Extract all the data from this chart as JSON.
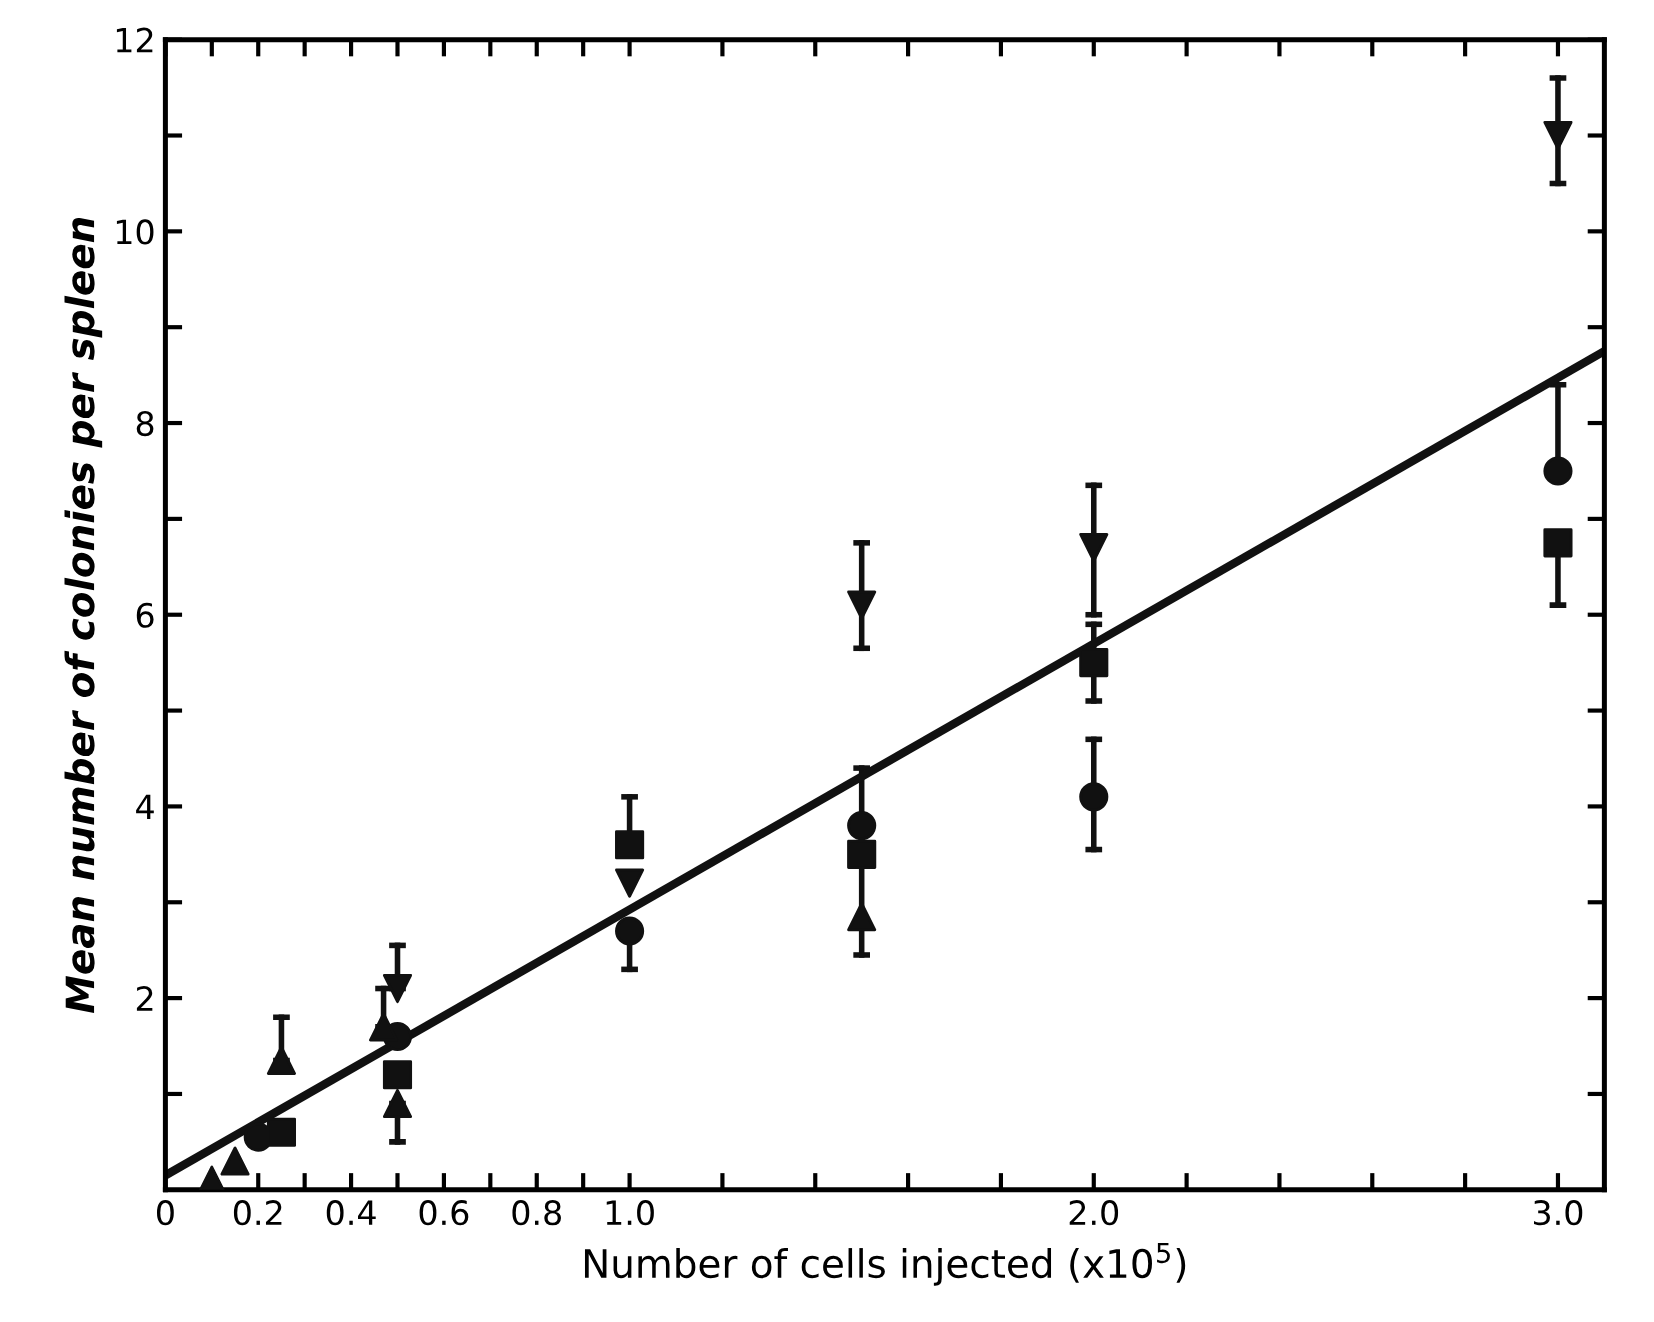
{
  "chart_data": {
    "type": "scatter",
    "xlabel": "Number of cells injected (x10$^{5}$)",
    "ylabel": "Mean number of colonies per spleen",
    "xlim": [
      0,
      3.1
    ],
    "ylim": [
      0,
      12
    ],
    "xticks": [
      {
        "value": 0,
        "label": "0"
      },
      {
        "value": 0.1,
        "label": null
      },
      {
        "value": 0.2,
        "label": "0.2"
      },
      {
        "value": 0.3,
        "label": null
      },
      {
        "value": 0.4,
        "label": "0.4"
      },
      {
        "value": 0.5,
        "label": null
      },
      {
        "value": 0.6,
        "label": "0.6"
      },
      {
        "value": 0.7,
        "label": null
      },
      {
        "value": 0.8,
        "label": "0.8"
      },
      {
        "value": 0.9,
        "label": null
      },
      {
        "value": 1.0,
        "label": "1.0"
      },
      {
        "value": 1.2,
        "label": null
      },
      {
        "value": 1.4,
        "label": null
      },
      {
        "value": 1.6,
        "label": null
      },
      {
        "value": 1.8,
        "label": null
      },
      {
        "value": 2.0,
        "label": "2.0"
      },
      {
        "value": 2.2,
        "label": null
      },
      {
        "value": 2.4,
        "label": null
      },
      {
        "value": 2.6,
        "label": null
      },
      {
        "value": 2.8,
        "label": null
      },
      {
        "value": 3.0,
        "label": "3.0"
      }
    ],
    "yticks": [
      {
        "value": 1,
        "label": null
      },
      2,
      {
        "value": 3,
        "label": null
      },
      4,
      {
        "value": 5,
        "label": null
      },
      6,
      {
        "value": 7,
        "label": null
      },
      8,
      {
        "value": 9,
        "label": null
      },
      10,
      {
        "value": 11,
        "label": null
      },
      12
    ],
    "grid": false,
    "legend": false,
    "series": [
      {
        "marker": "circle",
        "color": "#111111",
        "x": [
          0.2,
          0.5,
          1.0,
          1.5,
          2.0,
          3.0
        ],
        "values": [
          0.55,
          1.6,
          2.7,
          3.8,
          4.1,
          7.5
        ],
        "errors": [
          null,
          null,
          [
            2.3,
            2.7
          ],
          null,
          [
            3.55,
            4.7
          ],
          [
            7.5,
            8.4
          ]
        ]
      },
      {
        "marker": "square",
        "color": "#111111",
        "x": [
          0.25,
          0.5,
          1.0,
          1.5,
          2.0,
          3.0
        ],
        "values": [
          0.6,
          1.2,
          3.6,
          3.5,
          5.5,
          6.75
        ],
        "errors": [
          [
            0.5,
            0.6
          ],
          null,
          [
            3.6,
            4.1
          ],
          null,
          [
            5.1,
            5.9
          ],
          [
            6.1,
            6.75
          ]
        ]
      },
      {
        "marker": "triangle",
        "color": "#111111",
        "x": [
          0.1,
          0.15,
          0.25,
          0.47,
          0.5,
          1.5
        ],
        "values": [
          0.1,
          0.3,
          1.35,
          1.7,
          0.9,
          2.85
        ],
        "errors": [
          null,
          null,
          [
            1.35,
            1.8
          ],
          [
            1.7,
            2.1
          ],
          [
            0.5,
            0.9
          ],
          [
            2.45,
            4.4
          ]
        ]
      },
      {
        "marker": "triangle_down",
        "color": "#111111",
        "x": [
          0.5,
          1.0,
          1.5,
          2.0,
          3.0
        ],
        "values": [
          2.1,
          3.2,
          6.1,
          6.7,
          11.0
        ],
        "errors": [
          [
            2.1,
            2.55
          ],
          null,
          [
            5.65,
            6.75
          ],
          [
            6.0,
            7.35
          ],
          [
            10.5,
            11.6
          ]
        ]
      },
      {
        "type": "line",
        "color": "#111111",
        "line_style": "solid",
        "marker": "none",
        "x": [
          0,
          3.1
        ],
        "values": [
          0.15,
          8.75
        ]
      }
    ]
  }
}
